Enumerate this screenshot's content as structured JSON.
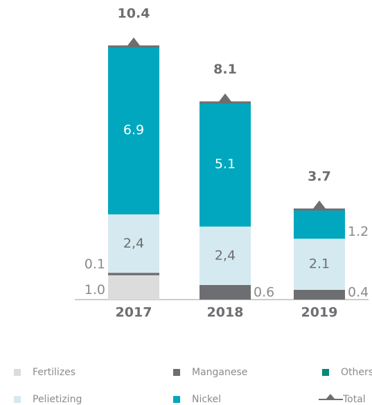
{
  "chart_data": {
    "type": "stacked_bar",
    "categories": [
      "2017",
      "2018",
      "2019"
    ],
    "series": [
      {
        "name": "Fertilizes",
        "color": "#dcdcdc",
        "values": [
          1.0,
          null,
          null
        ],
        "value_labels": [
          "1.0",
          null,
          null
        ]
      },
      {
        "name": "Manganese",
        "color": "#6d6e71",
        "values": [
          0.1,
          0.6,
          0.4
        ],
        "value_labels": [
          "0.1",
          "0.6",
          "0.4"
        ]
      },
      {
        "name": "Others",
        "color": "#00897b",
        "values": [
          null,
          null,
          null
        ]
      },
      {
        "name": "Pelietizing",
        "color": "#d5e9f0",
        "values": [
          2.4,
          2.4,
          2.1
        ],
        "value_labels": [
          "2,4",
          "2,4",
          "2.1"
        ]
      },
      {
        "name": "Nickel",
        "color": "#00a7be",
        "values": [
          6.9,
          5.1,
          1.2
        ],
        "value_labels": [
          "6.9",
          "5.1",
          "1.2"
        ]
      },
      {
        "name": "Total",
        "color": "#6d6e71",
        "values": [
          10.4,
          8.1,
          3.7
        ],
        "value_labels": [
          "10.4",
          "8.1",
          "3.7"
        ]
      }
    ]
  }
}
